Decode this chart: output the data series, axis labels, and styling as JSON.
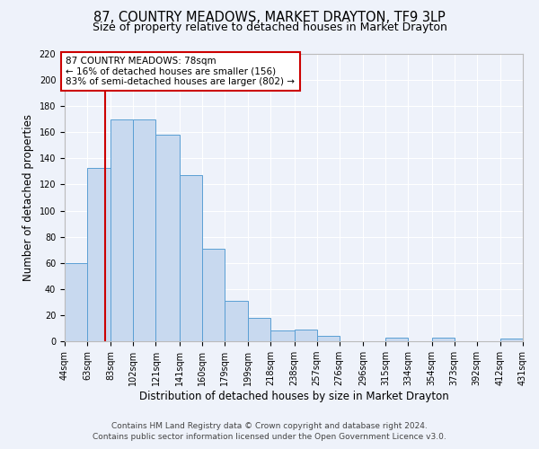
{
  "title": "87, COUNTRY MEADOWS, MARKET DRAYTON, TF9 3LP",
  "subtitle": "Size of property relative to detached houses in Market Drayton",
  "xlabel": "Distribution of detached houses by size in Market Drayton",
  "ylabel": "Number of detached properties",
  "footer_line1": "Contains HM Land Registry data © Crown copyright and database right 2024.",
  "footer_line2": "Contains public sector information licensed under the Open Government Licence v3.0.",
  "bin_edges": [
    44,
    63,
    83,
    102,
    121,
    141,
    160,
    179,
    199,
    218,
    238,
    257,
    276,
    296,
    315,
    334,
    354,
    373,
    392,
    412,
    431
  ],
  "bin_labels": [
    "44sqm",
    "63sqm",
    "83sqm",
    "102sqm",
    "121sqm",
    "141sqm",
    "160sqm",
    "179sqm",
    "199sqm",
    "218sqm",
    "238sqm",
    "257sqm",
    "276sqm",
    "296sqm",
    "315sqm",
    "334sqm",
    "354sqm",
    "373sqm",
    "392sqm",
    "412sqm",
    "431sqm"
  ],
  "counts": [
    60,
    133,
    170,
    170,
    158,
    127,
    71,
    31,
    18,
    8,
    9,
    4,
    0,
    0,
    3,
    0,
    3,
    0,
    0,
    2
  ],
  "bar_color": "#c8d9ef",
  "bar_edge_color": "#5a9fd4",
  "vline_x": 78,
  "vline_color": "#cc0000",
  "annotation_line1": "87 COUNTRY MEADOWS: 78sqm",
  "annotation_line2": "← 16% of detached houses are smaller (156)",
  "annotation_line3": "83% of semi-detached houses are larger (802) →",
  "annotation_box_color": "white",
  "annotation_box_edge_color": "#cc0000",
  "ylim": [
    0,
    220
  ],
  "yticks": [
    0,
    20,
    40,
    60,
    80,
    100,
    120,
    140,
    160,
    180,
    200,
    220
  ],
  "background_color": "#eef2fa",
  "grid_color": "#ffffff",
  "title_fontsize": 10.5,
  "subtitle_fontsize": 9,
  "axis_label_fontsize": 8.5,
  "tick_fontsize": 7,
  "annotation_fontsize": 7.5,
  "footer_fontsize": 6.5
}
